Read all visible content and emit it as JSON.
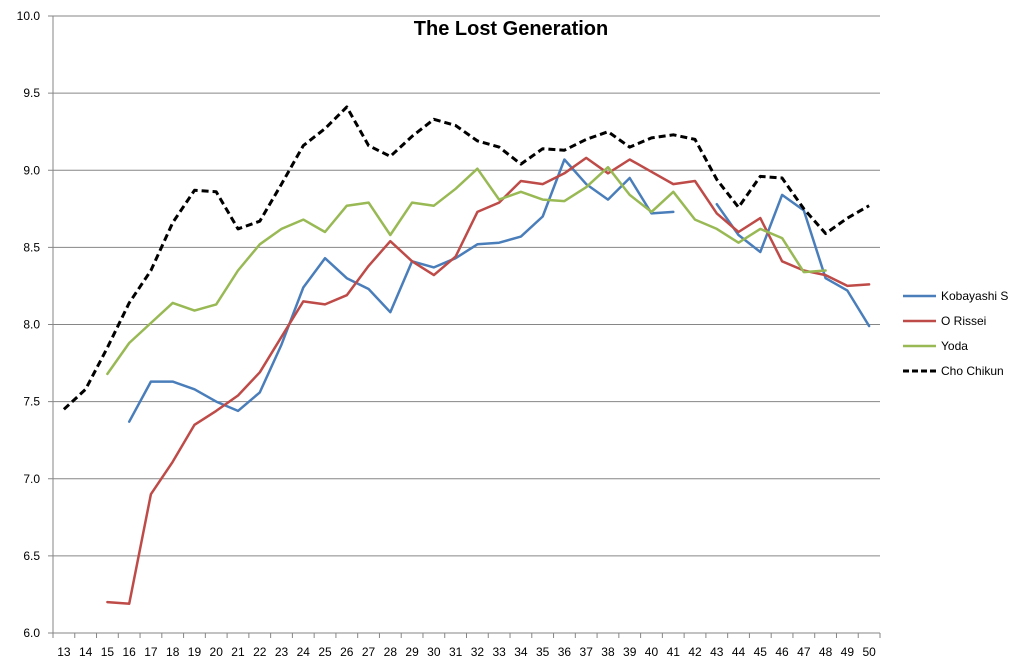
{
  "chart_data": {
    "type": "line",
    "title": "The Lost Generation",
    "xlabel": "",
    "ylabel": "",
    "x": [
      13,
      14,
      15,
      16,
      17,
      18,
      19,
      20,
      21,
      22,
      23,
      24,
      25,
      26,
      27,
      28,
      29,
      30,
      31,
      32,
      33,
      34,
      35,
      36,
      37,
      38,
      39,
      40,
      41,
      42,
      43,
      44,
      45,
      46,
      47,
      48,
      49,
      50
    ],
    "ylim": [
      6.0,
      10.0
    ],
    "yticks": [
      "6.0",
      "6.5",
      "7.0",
      "7.5",
      "8.0",
      "8.5",
      "9.0",
      "9.5",
      "10.0"
    ],
    "grid": true,
    "legend_position": "right",
    "series": [
      {
        "name": "Kobayashi S",
        "color": "#4a7ebb",
        "dashed": false,
        "values": [
          null,
          null,
          null,
          7.37,
          7.63,
          7.63,
          7.58,
          7.5,
          7.44,
          7.56,
          7.87,
          8.24,
          8.43,
          8.3,
          8.23,
          8.08,
          8.41,
          8.37,
          8.43,
          8.52,
          8.53,
          8.57,
          8.7,
          9.07,
          8.91,
          8.81,
          8.95,
          8.72,
          8.73,
          null,
          8.78,
          8.58,
          8.47,
          8.84,
          8.74,
          8.3,
          8.22,
          7.99
        ]
      },
      {
        "name": "O Rissei",
        "color": "#be4b48",
        "dashed": false,
        "values": [
          null,
          null,
          6.2,
          6.19,
          6.9,
          7.11,
          7.35,
          7.44,
          7.54,
          7.69,
          7.92,
          8.15,
          8.13,
          8.19,
          8.38,
          8.54,
          8.41,
          8.32,
          8.44,
          8.73,
          8.79,
          8.93,
          8.91,
          8.98,
          9.08,
          8.98,
          9.07,
          8.99,
          8.91,
          8.93,
          8.72,
          8.6,
          8.69,
          8.41,
          8.35,
          8.32,
          8.25,
          8.26
        ]
      },
      {
        "name": "Yoda",
        "color": "#98b954",
        "dashed": false,
        "values": [
          null,
          null,
          7.68,
          7.88,
          8.01,
          8.14,
          8.09,
          8.13,
          8.35,
          8.52,
          8.62,
          8.68,
          8.6,
          8.77,
          8.79,
          8.58,
          8.79,
          8.77,
          8.88,
          9.01,
          8.81,
          8.86,
          8.81,
          8.8,
          8.89,
          9.02,
          8.84,
          8.73,
          8.86,
          8.68,
          8.62,
          8.53,
          8.62,
          8.56,
          8.34,
          8.35,
          null,
          null
        ]
      },
      {
        "name": "Cho Chikun",
        "color": "#000000",
        "dashed": true,
        "values": [
          7.45,
          7.58,
          7.85,
          8.14,
          8.35,
          8.66,
          8.87,
          8.86,
          8.62,
          8.67,
          8.91,
          9.16,
          9.27,
          9.41,
          9.16,
          9.09,
          9.22,
          9.33,
          9.29,
          9.19,
          9.15,
          9.04,
          9.14,
          9.13,
          9.2,
          9.25,
          9.15,
          9.21,
          9.23,
          9.2,
          8.94,
          8.76,
          8.96,
          8.95,
          8.75,
          8.59,
          8.69,
          8.77
        ]
      }
    ]
  }
}
